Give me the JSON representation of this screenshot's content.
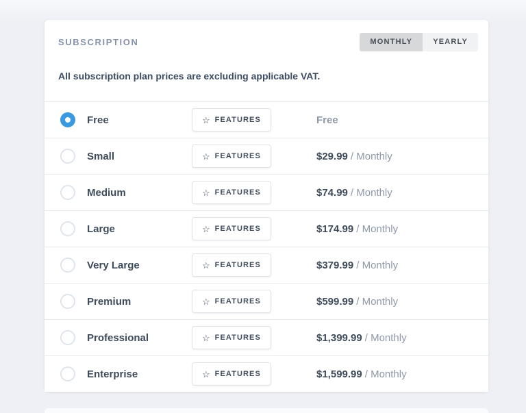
{
  "card": {
    "title": "SUBSCRIPTION",
    "toggle": {
      "options": [
        {
          "label": "MONTHLY",
          "active": true
        },
        {
          "label": "YEARLY",
          "active": false
        }
      ]
    },
    "note": "All subscription plan prices are excluding applicable VAT.",
    "features_label": "FEATURES",
    "star_icon": "☆",
    "plans": [
      {
        "name": "Free",
        "selected": true,
        "price": "Free",
        "period": "",
        "price_muted": true
      },
      {
        "name": "Small",
        "selected": false,
        "price": "$29.99",
        "period": "/ Monthly",
        "price_muted": false
      },
      {
        "name": "Medium",
        "selected": false,
        "price": "$74.99",
        "period": "/ Monthly",
        "price_muted": false
      },
      {
        "name": "Large",
        "selected": false,
        "price": "$174.99",
        "period": "/ Monthly",
        "price_muted": false
      },
      {
        "name": "Very Large",
        "selected": false,
        "price": "$379.99",
        "period": "/ Monthly",
        "price_muted": false
      },
      {
        "name": "Premium",
        "selected": false,
        "price": "$599.99",
        "period": "/ Monthly",
        "price_muted": false
      },
      {
        "name": "Professional",
        "selected": false,
        "price": "$1,399.99",
        "period": "/ Monthly",
        "price_muted": false
      },
      {
        "name": "Enterprise",
        "selected": false,
        "price": "$1,599.99",
        "period": "/ Monthly",
        "price_muted": false
      }
    ]
  },
  "colors": {
    "page_background": "#eef0f5",
    "card_background": "#ffffff",
    "accent_radio_blue": "#3b99e0",
    "dark_text": "#3e4b5b",
    "muted_text": "#8d98a8",
    "heading_text": "#8593ab",
    "separator": "#e8eaed",
    "toggle_active_bg": "#d6d8da",
    "toggle_inactive_bg": "#f1f2f3"
  }
}
